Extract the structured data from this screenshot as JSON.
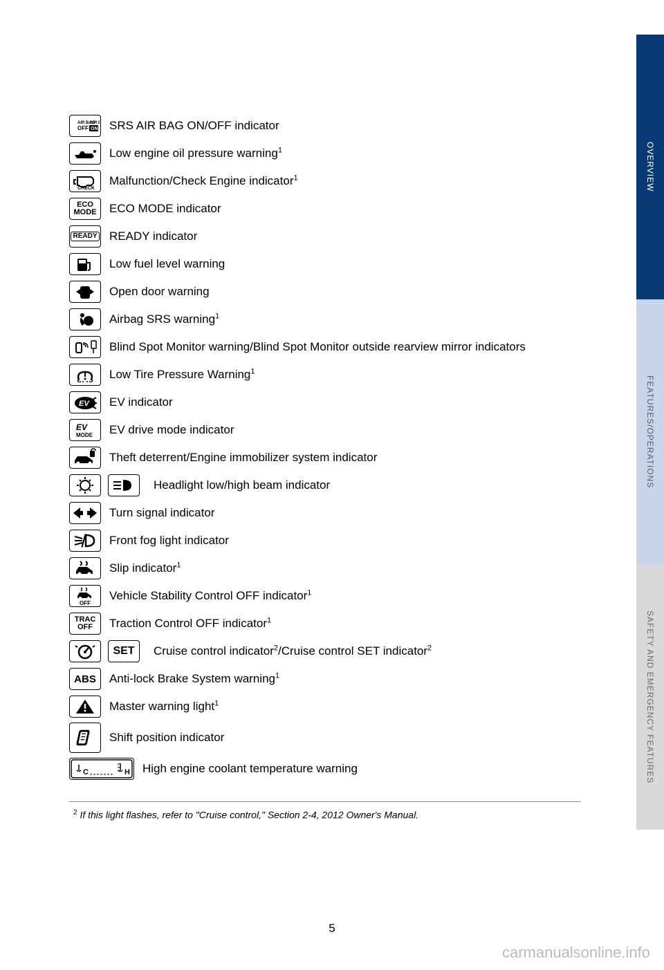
{
  "indicators": [
    {
      "label": "SRS AIR BAG ON/OFF indicator",
      "icon": "airbag-onoff"
    },
    {
      "label": "Low engine oil pressure warning",
      "sup": "1",
      "icon": "oil"
    },
    {
      "label": "Malfunction/Check Engine indicator",
      "sup": "1",
      "icon": "check-engine"
    },
    {
      "label": "ECO MODE indicator",
      "icon": "eco-mode"
    },
    {
      "label": "READY indicator",
      "icon": "ready"
    },
    {
      "label": "Low fuel level warning",
      "icon": "fuel"
    },
    {
      "label": "Open door warning",
      "icon": "door"
    },
    {
      "label": "Airbag SRS warning",
      "sup": "1",
      "icon": "airbag"
    },
    {
      "label": "Blind Spot Monitor warning/Blind Spot Monitor outside rearview mirror indicators",
      "icon": "bsm"
    },
    {
      "label": "Low Tire Pressure Warning",
      "sup": "1",
      "icon": "tire"
    },
    {
      "label": "EV indicator",
      "icon": "ev"
    },
    {
      "label": "EV drive mode indicator",
      "icon": "ev-mode"
    },
    {
      "label": "Theft deterrent/Engine immobilizer system indicator",
      "icon": "theft"
    },
    {
      "label": "Headlight low/high beam indicator",
      "icon": "headlight-low",
      "icon2": "headlight-high"
    },
    {
      "label": "Turn signal indicator",
      "icon": "turn"
    },
    {
      "label": "Front fog light indicator",
      "icon": "fog"
    },
    {
      "label": "Slip indicator",
      "sup": "1",
      "icon": "slip"
    },
    {
      "label": "Vehicle Stability Control OFF indicator",
      "sup": "1",
      "icon": "vsc-off"
    },
    {
      "label": "Traction Control OFF indicator",
      "sup": "1",
      "icon": "trac-off"
    },
    {
      "label": "Cruise control indicator",
      "sup": "2",
      "label2": "/Cruise control SET indicator",
      "sup2": "2",
      "icon": "cruise",
      "icon2": "set"
    },
    {
      "label": "Anti-lock Brake System warning",
      "sup": "1",
      "icon": "abs"
    },
    {
      "label": "Master warning light",
      "sup": "1",
      "icon": "master"
    },
    {
      "label": "Shift position indicator",
      "icon": "shift"
    },
    {
      "label": "High engine coolant temperature warning",
      "icon": "coolant"
    }
  ],
  "tabs": {
    "overview": "OVERVIEW",
    "features": "FEATURES/OPERATIONS",
    "safety": "SAFETY AND EMERGENCY FEATURES"
  },
  "footnote": {
    "sup": "2",
    "text": " If this light flashes, refer to \"Cruise control,\" Section 2-4, 2012 Owner's Manual."
  },
  "page_number": "5",
  "watermark": "carmanualsonline.info",
  "colors": {
    "tab_overview_bg": "#0a3a75",
    "tab_features_bg": "#c9d6ea",
    "tab_safety_bg": "#d8d8da"
  }
}
